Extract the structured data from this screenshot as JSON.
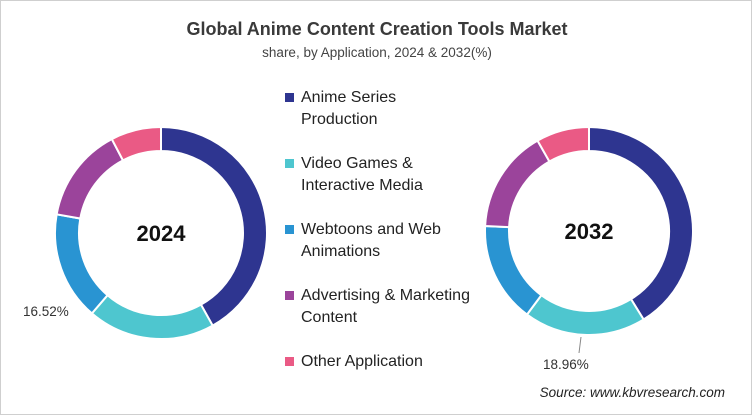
{
  "chart_data": [
    {
      "type": "pie",
      "variant": "donut",
      "title": "Global Anime Content Creation Tools Market",
      "subtitle": "share, by Application, 2024 & 2032(%)",
      "center_label": "2024",
      "categories": [
        "Anime Series Production",
        "Video Games & Interactive Media",
        "Webtoons and Web Animations",
        "Advertising & Marketing Content",
        "Other Application"
      ],
      "values": [
        41.9,
        19.4,
        16.52,
        14.5,
        7.68
      ],
      "data_labels": [
        {
          "category": "Webtoons and Web Animations",
          "text": "16.52%"
        }
      ]
    },
    {
      "type": "pie",
      "variant": "donut",
      "center_label": "2032",
      "categories": [
        "Anime Series Production",
        "Video Games & Interactive Media",
        "Webtoons and Web Animations",
        "Advertising & Marketing Content",
        "Other Application"
      ],
      "values": [
        41.2,
        18.96,
        15.6,
        16.0,
        8.24
      ],
      "data_labels": [
        {
          "category": "Video Games & Interactive Media",
          "text": "18.96%"
        }
      ]
    }
  ],
  "legend": {
    "placement": "center",
    "items": [
      {
        "label": "Anime Series Production",
        "color": "#2e3590"
      },
      {
        "label": "Video Games & Interactive Media",
        "color": "#4ec6cf"
      },
      {
        "label": "Webtoons and Web Animations",
        "color": "#2994d2"
      },
      {
        "label": "Advertising & Marketing Content",
        "color": "#9b449b"
      },
      {
        "label": "Other Application",
        "color": "#ea5a85"
      }
    ]
  },
  "source": "Source: www.kbvresearch.com"
}
